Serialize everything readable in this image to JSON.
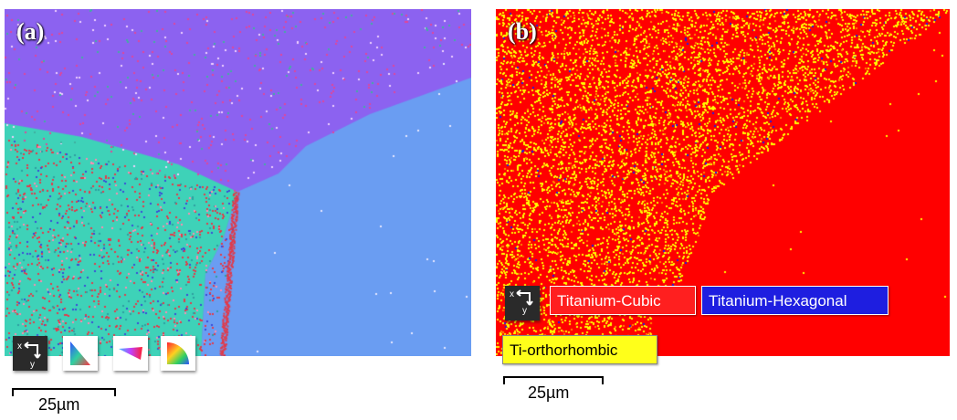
{
  "panel_a": {
    "label": "(a)",
    "scale_bar": "25µm",
    "icons": [
      "reference-frame-icon",
      "ipf-x-key-icon",
      "ipf-y-key-icon",
      "ipf-z-key-icon"
    ],
    "colors": {
      "upper_grain": "#8c62f0",
      "right_grain": "#6a9df2",
      "lower_left_grain": "#3ed2b8",
      "speckle_red": "#e23a4a",
      "speckle_blue": "#3a4ad8"
    }
  },
  "panel_b": {
    "label": "(b)",
    "scale_bar": "25µm",
    "phases": [
      {
        "name": "Titanium-Cubic",
        "color": "#ff0000"
      },
      {
        "name": "Titanium-Hexagonal",
        "color": "#1e1ee0"
      },
      {
        "name": "Ti-orthorhombic",
        "color": "#ffff00"
      }
    ]
  },
  "axis_icon": {
    "x": "x",
    "y": "y"
  }
}
